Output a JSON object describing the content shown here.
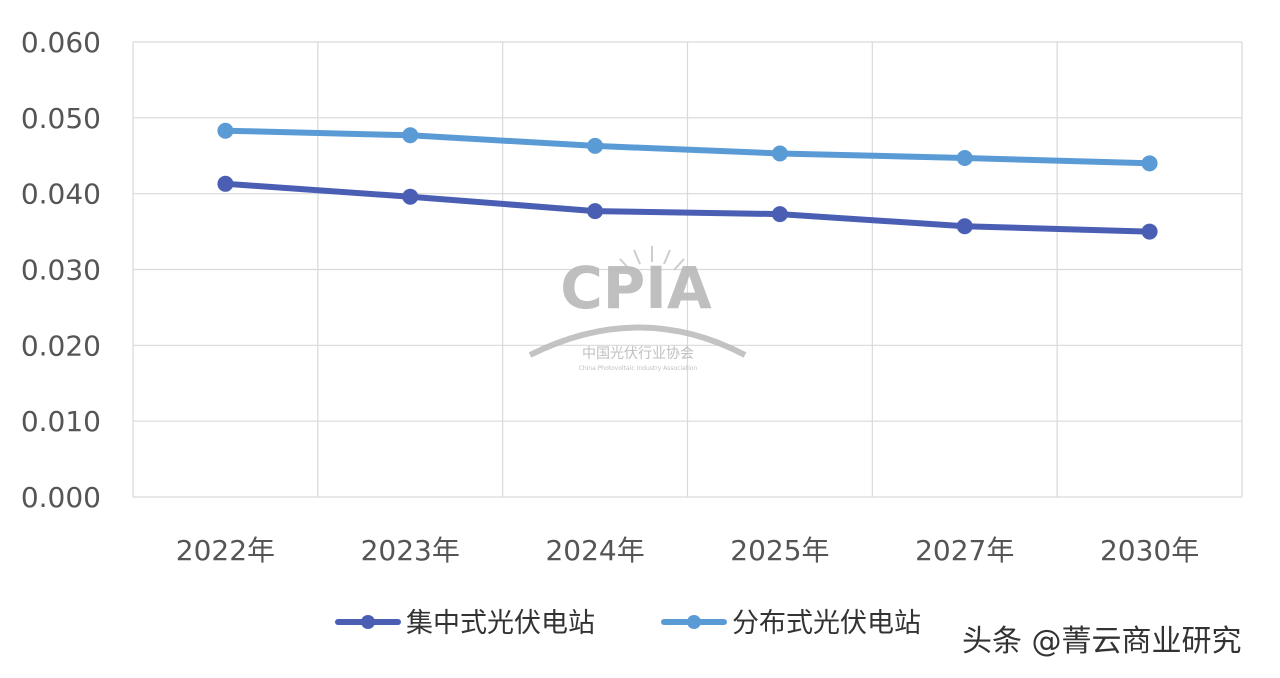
{
  "chart_data": {
    "type": "line",
    "categories": [
      "2022年",
      "2023年",
      "2024年",
      "2025年",
      "2027年",
      "2030年"
    ],
    "series": [
      {
        "name": "集中式光伏电站",
        "values": [
          0.0413,
          0.0396,
          0.0377,
          0.0373,
          0.0357,
          0.035
        ],
        "color": "#4a5fb4"
      },
      {
        "name": "分布式光伏电站",
        "values": [
          0.0483,
          0.0477,
          0.0463,
          0.0453,
          0.0447,
          0.044
        ],
        "color": "#5b9bd5"
      }
    ],
    "ylim": [
      0,
      0.06
    ],
    "yticks": [
      "0.000",
      "0.010",
      "0.020",
      "0.030",
      "0.040",
      "0.050",
      "0.060"
    ],
    "grid": true,
    "legend_position": "bottom"
  },
  "watermark": {
    "logo_text": "CPIA",
    "org_name": "中国光伏行业协会",
    "org_name_en": "China Photovoltaic Industry Association"
  },
  "credit": "头条 @菁云商业研究"
}
